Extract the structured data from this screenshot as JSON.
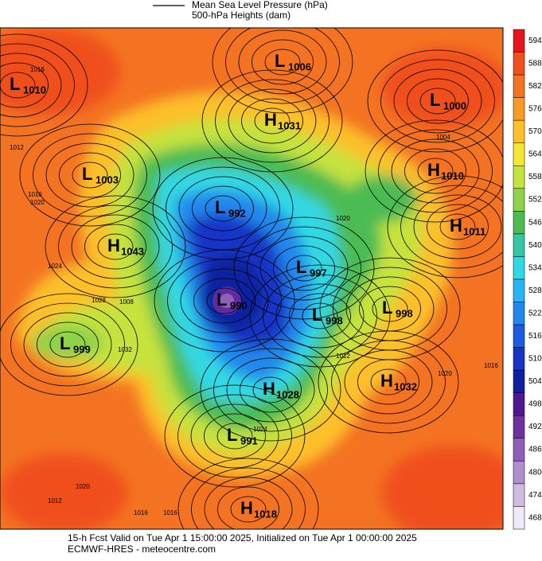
{
  "legend": {
    "lines": [
      "Mean Sea Level Pressure (hPa)",
      "500-hPa Heights (dam)"
    ]
  },
  "colorbar": {
    "levels": [
      {
        "label": "594",
        "color": "#e8141c"
      },
      {
        "label": "588",
        "color": "#f0501e"
      },
      {
        "label": "582",
        "color": "#f47322"
      },
      {
        "label": "576",
        "color": "#f89a26"
      },
      {
        "label": "570",
        "color": "#fcc02c"
      },
      {
        "label": "564",
        "color": "#f6e634"
      },
      {
        "label": "558",
        "color": "#c6e23c"
      },
      {
        "label": "552",
        "color": "#8ed24a"
      },
      {
        "label": "546",
        "color": "#4cbc52"
      },
      {
        "label": "540",
        "color": "#34c8a0"
      },
      {
        "label": "534",
        "color": "#30d8e4"
      },
      {
        "label": "528",
        "color": "#28b4f0"
      },
      {
        "label": "522",
        "color": "#2088ec"
      },
      {
        "label": "516",
        "color": "#1c5ce0"
      },
      {
        "label": "510",
        "color": "#1834c8"
      },
      {
        "label": "504",
        "color": "#1020a0"
      },
      {
        "label": "498",
        "color": "#501890"
      },
      {
        "label": "492",
        "color": "#7030a0"
      },
      {
        "label": "486",
        "color": "#9060b8"
      },
      {
        "label": "480",
        "color": "#b090cc"
      },
      {
        "label": "474",
        "color": "#d0bce0"
      },
      {
        "label": "468",
        "color": "#f0eaf6"
      }
    ]
  },
  "centers": [
    {
      "kind": "L",
      "value": "1010"
    },
    {
      "kind": "L",
      "value": "1006"
    },
    {
      "kind": "H",
      "value": "1031"
    },
    {
      "kind": "L",
      "value": "1000"
    },
    {
      "kind": "L",
      "value": "1003"
    },
    {
      "kind": "H",
      "value": "1010"
    },
    {
      "kind": "L",
      "value": "992"
    },
    {
      "kind": "H",
      "value": "1011"
    },
    {
      "kind": "H",
      "value": "1043"
    },
    {
      "kind": "L",
      "value": "997"
    },
    {
      "kind": "L",
      "value": "990"
    },
    {
      "kind": "L",
      "value": "998"
    },
    {
      "kind": "L",
      "value": "998"
    },
    {
      "kind": "L",
      "value": "999"
    },
    {
      "kind": "H",
      "value": "1028"
    },
    {
      "kind": "H",
      "value": "1032"
    },
    {
      "kind": "L",
      "value": "991"
    },
    {
      "kind": "H",
      "value": "1018"
    }
  ],
  "isobar_labels": [
    "1016",
    "1012",
    "1016",
    "1020",
    "1024",
    "1028",
    "1032",
    "1020",
    "1016",
    "1004",
    "1020",
    "1012",
    "1024",
    "1020",
    "1016",
    "1016",
    "1012",
    "1008"
  ],
  "footer": {
    "lines": [
      "15-h Fcst Valid on Tue Apr  1 15:00:00 2025, Initialized on Tue Apr  1 00:00:00 2025",
      "ECMWF-HRES - meteocentre.com"
    ]
  }
}
